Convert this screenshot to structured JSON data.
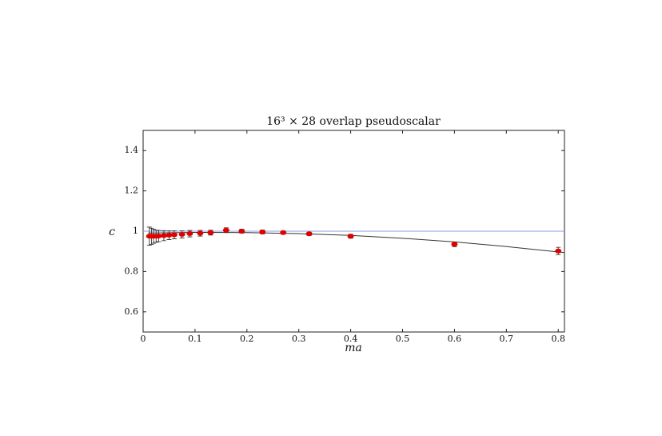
{
  "chart_data": {
    "type": "scatter",
    "title": "16³ × 28 overlap pseudoscalar",
    "x_label": "ma",
    "y_label": "c",
    "xlim": [
      0,
      0.812
    ],
    "ylim": [
      0.5,
      1.5
    ],
    "xticks": [
      0,
      0.1,
      0.2,
      0.3,
      0.4,
      0.5,
      0.6,
      0.7,
      0.8
    ],
    "yticks": [
      0.6,
      0.8,
      1,
      1.2,
      1.4
    ],
    "grid": false,
    "series": [
      {
        "style": "line",
        "color": "#8a9ee0",
        "x": [
          0,
          0.812
        ],
        "values": [
          1,
          1
        ]
      },
      {
        "style": "line",
        "color": "#333333",
        "x": [
          0.01,
          0.1,
          0.2,
          0.3,
          0.4,
          0.5,
          0.6,
          0.7,
          0.812
        ],
        "values": [
          0.991,
          0.994,
          0.993,
          0.988,
          0.979,
          0.965,
          0.947,
          0.924,
          0.894
        ]
      },
      {
        "style": "points",
        "color": "#e00000",
        "x": [
          0.012,
          0.016,
          0.02,
          0.025,
          0.03,
          0.04,
          0.05,
          0.06,
          0.075,
          0.09,
          0.11,
          0.13,
          0.16,
          0.19,
          0.23,
          0.27,
          0.32,
          0.4,
          0.6,
          0.8
        ],
        "values": [
          0.975,
          0.975,
          0.975,
          0.975,
          0.976,
          0.978,
          0.98,
          0.982,
          0.984,
          0.988,
          0.99,
          0.993,
          1.005,
          1.0,
          0.996,
          0.993,
          0.987,
          0.975,
          0.935,
          0.902
        ],
        "errors": [
          0.045,
          0.04,
          0.035,
          0.03,
          0.028,
          0.025,
          0.022,
          0.02,
          0.018,
          0.016,
          0.014,
          0.012,
          0.012,
          0.01,
          0.01,
          0.008,
          0.008,
          0.01,
          0.012,
          0.018
        ]
      }
    ]
  }
}
